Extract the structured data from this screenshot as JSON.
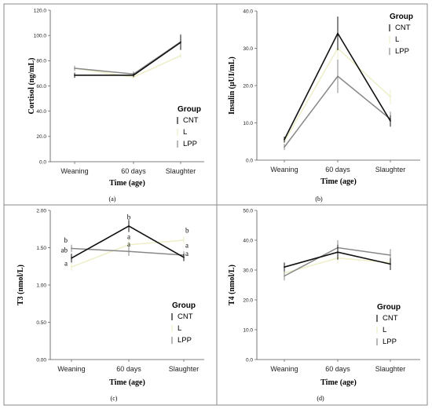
{
  "chart_data": [
    {
      "type": "line",
      "panel": "(a)",
      "categories": [
        "Weaning",
        "60 days",
        "Slaughter"
      ],
      "xlabel": "Time (age)",
      "ylabel": "Cortisol (ng/mL)",
      "ylim": [
        0,
        120
      ],
      "yticks": [
        "0.0",
        "20.0",
        "40.0",
        "60.0",
        "80.0",
        "100.0",
        "120.0"
      ],
      "legend_title": "Group",
      "legend_position": "bottom-right",
      "series": [
        {
          "name": "CNT",
          "color": "#111111",
          "values": [
            68.5,
            68.5,
            94.5
          ],
          "err": [
            2,
            1.5,
            6
          ]
        },
        {
          "name": "L",
          "color": "#eeeec8",
          "values": [
            74,
            67,
            84
          ],
          "err": [
            2,
            1.5,
            2
          ]
        },
        {
          "name": "LPP",
          "color": "#888888",
          "values": [
            74,
            69.5,
            95
          ],
          "err": [
            2,
            2,
            6
          ]
        }
      ],
      "annotations": []
    },
    {
      "type": "line",
      "panel": "(b)",
      "categories": [
        "Weaning",
        "60 days",
        "Slaughter"
      ],
      "xlabel": "Time (age)",
      "ylabel": "Insulin (μUI/mL)",
      "ylim": [
        0,
        40
      ],
      "yticks": [
        "0.0",
        "10.0",
        "20.0",
        "30.0",
        "40.0"
      ],
      "legend_title": "Group",
      "legend_position": "top-right",
      "series": [
        {
          "name": "CNT",
          "color": "#111111",
          "values": [
            5.5,
            34,
            10.5
          ],
          "err": [
            0.8,
            4.5,
            1.5
          ]
        },
        {
          "name": "L",
          "color": "#eeeec8",
          "values": [
            5,
            30,
            17
          ],
          "err": [
            0.8,
            3,
            2
          ]
        },
        {
          "name": "LPP",
          "color": "#888888",
          "values": [
            3.5,
            22.5,
            11
          ],
          "err": [
            0.8,
            4.5,
            2
          ]
        }
      ],
      "annotations": []
    },
    {
      "type": "line",
      "panel": "(c)",
      "categories": [
        "Weaning",
        "60 days",
        "Slaughter"
      ],
      "xlabel": "Time (age)",
      "ylabel": "T3 (nmol/L)",
      "ylim": [
        0,
        2
      ],
      "yticks": [
        "0.00",
        "0.50",
        "1.00",
        "1.50",
        "2.00"
      ],
      "legend_title": "Group",
      "legend_position": "bottom-right",
      "series": [
        {
          "name": "CNT",
          "color": "#111111",
          "values": [
            1.36,
            1.79,
            1.37
          ],
          "err": [
            0.06,
            0.08,
            0.05
          ]
        },
        {
          "name": "L",
          "color": "#eeeec8",
          "values": [
            1.24,
            1.54,
            1.6
          ],
          "err": [
            0.05,
            0.08,
            0.05
          ]
        },
        {
          "name": "LPP",
          "color": "#888888",
          "values": [
            1.49,
            1.45,
            1.4
          ],
          "err": [
            0.05,
            0.06,
            0.05
          ]
        }
      ],
      "annotations": [
        {
          "text": "b",
          "x": 0,
          "y": 1.6,
          "side": "left"
        },
        {
          "text": "ab",
          "x": 0,
          "y": 1.47,
          "side": "left"
        },
        {
          "text": "a",
          "x": 0,
          "y": 1.29,
          "side": "left"
        },
        {
          "text": "b",
          "x": 1,
          "y": 1.91,
          "side": "center"
        },
        {
          "text": "a",
          "x": 1,
          "y": 1.65,
          "side": "center"
        },
        {
          "text": "a",
          "x": 1,
          "y": 1.55,
          "side": "center"
        },
        {
          "text": "b",
          "x": 2,
          "y": 1.73,
          "side": "right"
        },
        {
          "text": "a",
          "x": 2,
          "y": 1.53,
          "side": "right"
        },
        {
          "text": "a",
          "x": 2,
          "y": 1.42,
          "side": "right"
        }
      ]
    },
    {
      "type": "line",
      "panel": "(d)",
      "categories": [
        "Weaning",
        "60 days",
        "Slaughter"
      ],
      "xlabel": "Time (age)",
      "ylabel": "T4 (nmol/L)",
      "ylim": [
        0,
        50
      ],
      "yticks": [
        "0.0",
        "10.0",
        "20.0",
        "30.0",
        "40.0",
        "50.0"
      ],
      "legend_title": "Group",
      "legend_position": "bottom-right",
      "series": [
        {
          "name": "CNT",
          "color": "#111111",
          "values": [
            31,
            36,
            32
          ],
          "err": [
            1.5,
            2.5,
            2
          ]
        },
        {
          "name": "L",
          "color": "#eeeec8",
          "values": [
            29,
            34,
            32.5
          ],
          "err": [
            1.5,
            2,
            2
          ]
        },
        {
          "name": "LPP",
          "color": "#888888",
          "values": [
            28,
            37.5,
            35
          ],
          "err": [
            1.5,
            2.5,
            2
          ]
        }
      ],
      "annotations": []
    }
  ]
}
